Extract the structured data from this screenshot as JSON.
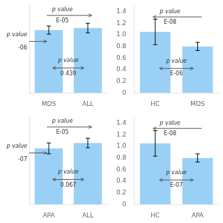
{
  "chart_data": [
    {
      "type": "bar",
      "categories": [
        "MDS",
        "ALL"
      ],
      "values": [
        0.92,
        0.95
      ],
      "errors": [
        0.06,
        0.07
      ],
      "ylim": [
        0,
        1.3
      ],
      "tick_labels": "x",
      "grid": false,
      "annotations": [
        "p value",
        "E-05",
        "p value",
        "0.439",
        "p value",
        "-06"
      ]
    },
    {
      "type": "bar",
      "categories": [
        "HC",
        "MDS"
      ],
      "values": [
        1.05,
        0.8
      ],
      "errors": [
        0.22,
        0.07
      ],
      "ylim": [
        0,
        1.5
      ],
      "yticks": [
        0,
        0.2,
        0.4,
        0.6,
        0.8,
        {
          "value": 1.0,
          "label": "1.0"
        },
        1.2,
        1.4
      ],
      "grid": false,
      "annotations": [
        "p value",
        "E-08",
        "p value",
        "E-06"
      ]
    },
    {
      "type": "bar",
      "categories": [
        "APA",
        "ALL"
      ],
      "values": [
        0.82,
        0.9
      ],
      "errors": [
        0.08,
        0.07
      ],
      "ylim": [
        0,
        1.3
      ],
      "tick_labels": "x",
      "grid": false,
      "annotations": [
        "p value",
        "E-05",
        "p value",
        "0.067",
        "p value",
        "-07"
      ]
    },
    {
      "type": "bar",
      "categories": [
        "HC",
        "APA"
      ],
      "values": [
        1.05,
        0.8
      ],
      "errors": [
        0.22,
        0.07
      ],
      "ylim": [
        0,
        1.5
      ],
      "yticks": [
        0,
        0.2,
        0.4,
        0.6,
        0.8,
        {
          "value": 1.0,
          "label": "1.0"
        },
        1.2,
        1.4
      ],
      "grid": false,
      "annotations": [
        "p value",
        "E-08",
        "p value",
        "E-07"
      ]
    }
  ]
}
